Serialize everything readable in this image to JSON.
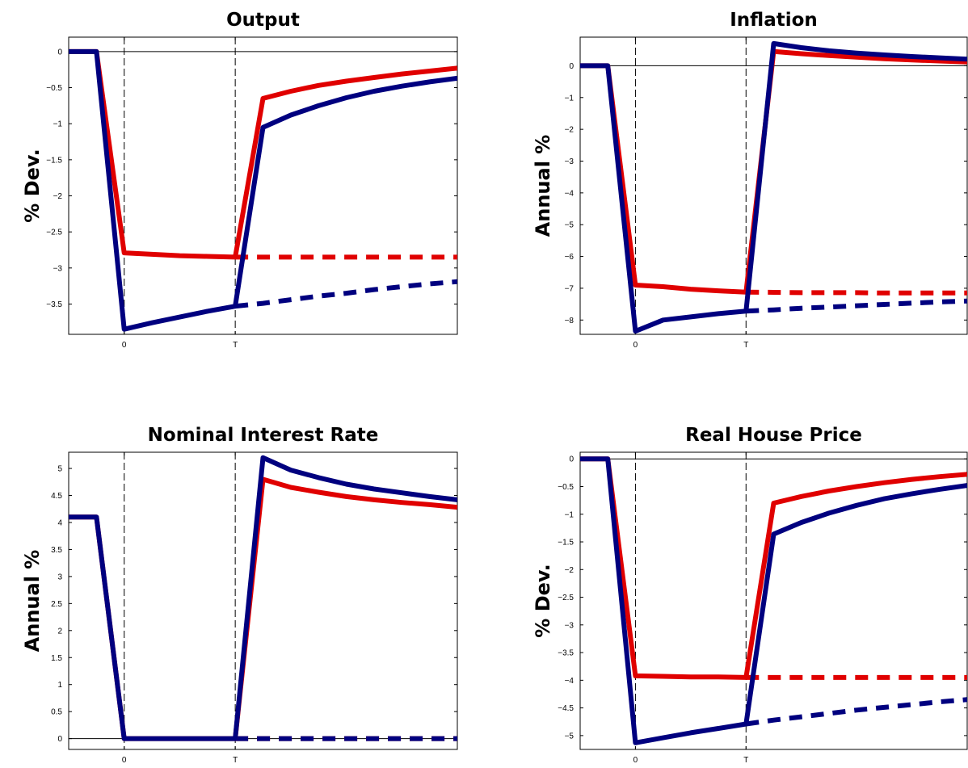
{
  "colors": {
    "red_series": "#e00000",
    "blue_series": "#00007f"
  },
  "chart_data": [
    {
      "type": "line",
      "title": "Output",
      "ylabel": "% Dev.",
      "ylim": [
        -3.92,
        0.2
      ],
      "yticks": [
        0,
        -0.5,
        -1,
        -1.5,
        -2,
        -2.5,
        -3,
        -3.5
      ],
      "ytick_labels": [
        "0",
        "−0.5",
        "−1",
        "−1.5",
        "−2",
        "−2.5",
        "−3",
        "−3.5"
      ],
      "xlim": [
        -2,
        12
      ],
      "xticks": [
        0,
        4
      ],
      "xtick_labels": [
        "0",
        "T"
      ],
      "vlines": [
        0,
        4
      ],
      "series": [
        {
          "color": "red",
          "style": "solid",
          "x": [
            -2,
            -1,
            0,
            1,
            2,
            3,
            4,
            5,
            6,
            7,
            8,
            9,
            10,
            11,
            12
          ],
          "y": [
            0,
            0,
            -2.79,
            -2.81,
            -2.83,
            -2.84,
            -2.85,
            -0.65,
            -0.55,
            -0.47,
            -0.41,
            -0.36,
            -0.31,
            -0.27,
            -0.23
          ]
        },
        {
          "color": "red",
          "style": "dashed",
          "x": [
            4,
            5,
            6,
            7,
            8,
            9,
            10,
            11,
            12
          ],
          "y": [
            -2.85,
            -2.85,
            -2.85,
            -2.85,
            -2.85,
            -2.85,
            -2.85,
            -2.85,
            -2.85
          ]
        },
        {
          "color": "blue",
          "style": "solid",
          "x": [
            -2,
            -1,
            0,
            1,
            2,
            3,
            4,
            5,
            6,
            7,
            8,
            9,
            10,
            11,
            12
          ],
          "y": [
            0,
            0,
            -3.85,
            -3.76,
            -3.68,
            -3.6,
            -3.53,
            -1.05,
            -0.88,
            -0.75,
            -0.64,
            -0.55,
            -0.48,
            -0.42,
            -0.37
          ]
        },
        {
          "color": "blue",
          "style": "dashed",
          "x": [
            4,
            5,
            6,
            7,
            8,
            9,
            10,
            11,
            12
          ],
          "y": [
            -3.53,
            -3.49,
            -3.44,
            -3.39,
            -3.35,
            -3.3,
            -3.26,
            -3.22,
            -3.19
          ]
        }
      ]
    },
    {
      "type": "line",
      "title": "Inflation",
      "ylabel": "Annual %",
      "ylim": [
        -8.45,
        0.9
      ],
      "yticks": [
        0,
        -1,
        -2,
        -3,
        -4,
        -5,
        -6,
        -7,
        -8
      ],
      "ytick_labels": [
        "0",
        "−1",
        "−2",
        "−3",
        "−4",
        "−5",
        "−6",
        "−7",
        "−8"
      ],
      "xlim": [
        -2,
        12
      ],
      "xticks": [
        0,
        4
      ],
      "xtick_labels": [
        "0",
        "T"
      ],
      "vlines": [
        0,
        4
      ],
      "series": [
        {
          "color": "red",
          "style": "solid",
          "x": [
            -2,
            -1,
            0,
            1,
            2,
            3,
            4,
            5,
            6,
            7,
            8,
            9,
            10,
            11,
            12
          ],
          "y": [
            0,
            0,
            -6.9,
            -6.95,
            -7.03,
            -7.08,
            -7.12,
            0.45,
            0.38,
            0.32,
            0.27,
            0.22,
            0.18,
            0.15,
            0.12
          ]
        },
        {
          "color": "red",
          "style": "dashed",
          "x": [
            4,
            5,
            6,
            7,
            8,
            9,
            10,
            11,
            12
          ],
          "y": [
            -7.12,
            -7.13,
            -7.14,
            -7.14,
            -7.14,
            -7.15,
            -7.15,
            -7.15,
            -7.15
          ]
        },
        {
          "color": "blue",
          "style": "solid",
          "x": [
            -2,
            -1,
            0,
            1,
            2,
            3,
            4,
            5,
            6,
            7,
            8,
            9,
            10,
            11,
            12
          ],
          "y": [
            0,
            0,
            -8.35,
            -8.0,
            -7.9,
            -7.8,
            -7.72,
            0.7,
            0.57,
            0.47,
            0.4,
            0.34,
            0.29,
            0.25,
            0.21
          ]
        },
        {
          "color": "blue",
          "style": "dashed",
          "x": [
            4,
            5,
            6,
            7,
            8,
            9,
            10,
            11,
            12
          ],
          "y": [
            -7.72,
            -7.68,
            -7.63,
            -7.59,
            -7.55,
            -7.51,
            -7.47,
            -7.43,
            -7.4
          ]
        }
      ]
    },
    {
      "type": "line",
      "title": "Nominal Interest Rate",
      "ylabel": "Annual %",
      "ylim": [
        -0.2,
        5.3
      ],
      "yticks": [
        0,
        0.5,
        1,
        1.5,
        2,
        2.5,
        3,
        3.5,
        4,
        4.5,
        5
      ],
      "ytick_labels": [
        "0",
        "0.5",
        "1",
        "1.5",
        "2",
        "2.5",
        "3",
        "3.5",
        "4",
        "4.5",
        "5"
      ],
      "xlim": [
        -2,
        12
      ],
      "xticks": [
        0,
        4
      ],
      "xtick_labels": [
        "0",
        "T"
      ],
      "vlines": [
        0,
        4
      ],
      "series": [
        {
          "color": "red",
          "style": "solid",
          "x": [
            -2,
            -1,
            0,
            1,
            2,
            3,
            4,
            5,
            6,
            7,
            8,
            9,
            10,
            11,
            12
          ],
          "y": [
            4.1,
            4.1,
            0,
            0,
            0,
            0,
            0,
            4.8,
            4.65,
            4.56,
            4.48,
            4.42,
            4.37,
            4.33,
            4.28
          ]
        },
        {
          "color": "red",
          "style": "dashed",
          "x": [
            4,
            5,
            6,
            7,
            8,
            9,
            10,
            11,
            12
          ],
          "y": [
            0,
            0,
            0,
            0,
            0,
            0,
            0,
            0,
            0
          ]
        },
        {
          "color": "blue",
          "style": "solid",
          "x": [
            -2,
            -1,
            0,
            1,
            2,
            3,
            4,
            5,
            6,
            7,
            8,
            9,
            10,
            11,
            12
          ],
          "y": [
            4.1,
            4.1,
            0,
            0,
            0,
            0,
            0,
            5.2,
            4.97,
            4.83,
            4.71,
            4.62,
            4.55,
            4.48,
            4.42
          ]
        },
        {
          "color": "blue",
          "style": "dashed",
          "x": [
            4,
            5,
            6,
            7,
            8,
            9,
            10,
            11,
            12
          ],
          "y": [
            0,
            0,
            0,
            0,
            0,
            0,
            0,
            0,
            0
          ]
        }
      ]
    },
    {
      "type": "line",
      "title": "Real House Price",
      "ylabel": "% Dev.",
      "ylim": [
        -5.25,
        0.12
      ],
      "yticks": [
        0,
        -0.5,
        -1,
        -1.5,
        -2,
        -2.5,
        -3,
        -3.5,
        -4,
        -4.5,
        -5
      ],
      "ytick_labels": [
        "0",
        "−0.5",
        "−1",
        "−1.5",
        "−2",
        "−2.5",
        "−3",
        "−3.5",
        "−4",
        "−4.5",
        "−5"
      ],
      "xlim": [
        -2,
        12
      ],
      "xticks": [
        0,
        4
      ],
      "xtick_labels": [
        "0",
        "T"
      ],
      "vlines": [
        0,
        4
      ],
      "series": [
        {
          "color": "red",
          "style": "solid",
          "x": [
            -2,
            -1,
            0,
            1,
            2,
            3,
            4,
            5,
            6,
            7,
            8,
            9,
            10,
            11,
            12
          ],
          "y": [
            0,
            0,
            -3.92,
            -3.93,
            -3.94,
            -3.94,
            -3.95,
            -0.8,
            -0.68,
            -0.58,
            -0.5,
            -0.43,
            -0.37,
            -0.32,
            -0.28
          ]
        },
        {
          "color": "red",
          "style": "dashed",
          "x": [
            4,
            5,
            6,
            7,
            8,
            9,
            10,
            11,
            12
          ],
          "y": [
            -3.95,
            -3.95,
            -3.95,
            -3.95,
            -3.95,
            -3.95,
            -3.95,
            -3.95,
            -3.95
          ]
        },
        {
          "color": "blue",
          "style": "solid",
          "x": [
            -2,
            -1,
            0,
            1,
            2,
            3,
            4,
            5,
            6,
            7,
            8,
            9,
            10,
            11,
            12
          ],
          "y": [
            0,
            0,
            -5.13,
            -5.04,
            -4.95,
            -4.87,
            -4.79,
            -1.36,
            -1.15,
            -0.98,
            -0.84,
            -0.72,
            -0.63,
            -0.55,
            -0.48
          ]
        },
        {
          "color": "blue",
          "style": "dashed",
          "x": [
            4,
            5,
            6,
            7,
            8,
            9,
            10,
            11,
            12
          ],
          "y": [
            -4.79,
            -4.72,
            -4.66,
            -4.6,
            -4.54,
            -4.49,
            -4.44,
            -4.39,
            -4.35
          ]
        }
      ]
    }
  ]
}
